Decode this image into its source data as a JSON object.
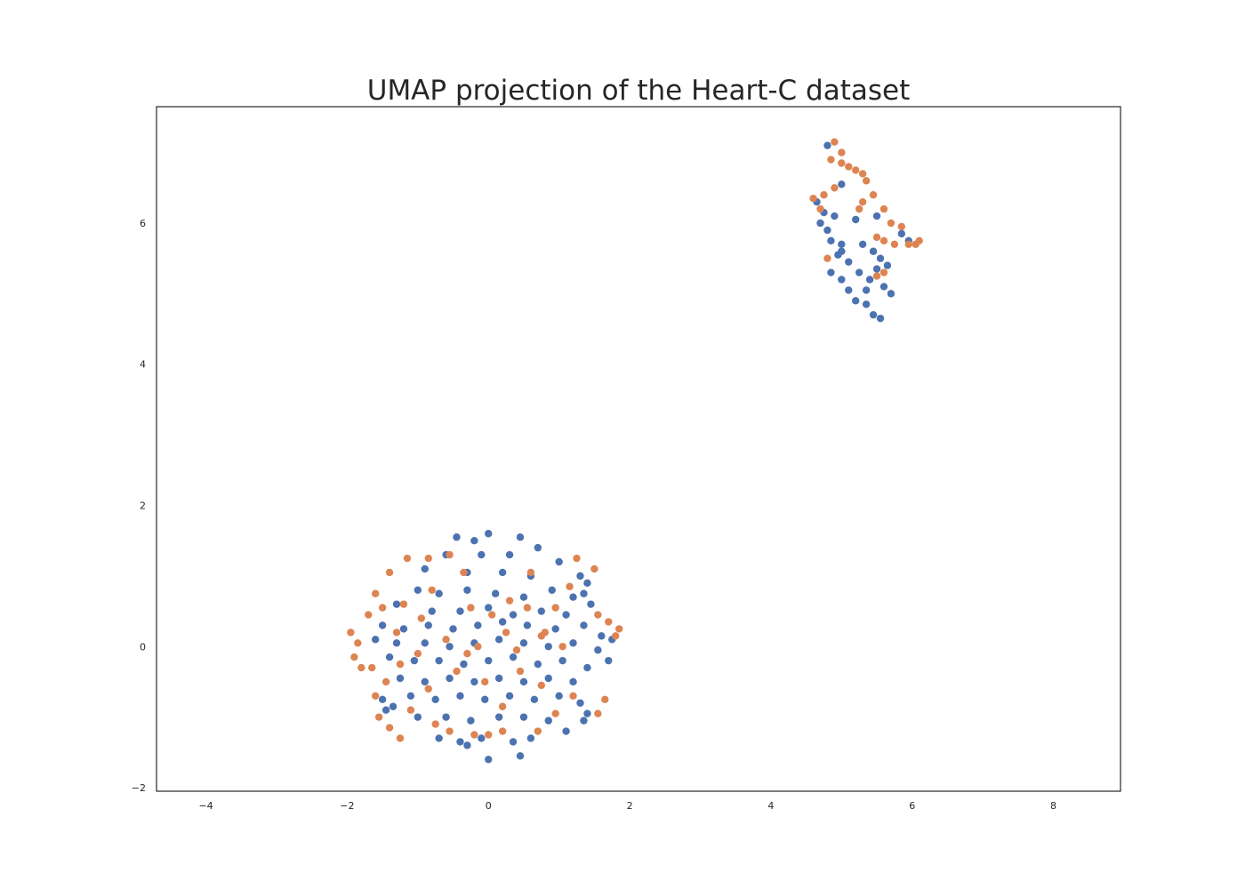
{
  "chart_data": {
    "type": "scatter",
    "title": "UMAP projection of the Heart-C dataset",
    "xlabel": "",
    "ylabel": "",
    "xlim": [
      -4.7,
      8.95
    ],
    "ylim": [
      -2.05,
      7.65
    ],
    "xticks": [
      -4,
      -2,
      0,
      2,
      4,
      6,
      8
    ],
    "yticks": [
      -2,
      0,
      2,
      4,
      6
    ],
    "grid": false,
    "legend": "none",
    "series": [
      {
        "color": "#4c72b0",
        "points": [
          [
            -0.45,
            1.55
          ],
          [
            -0.2,
            1.5
          ],
          [
            0.0,
            1.6
          ],
          [
            0.45,
            1.55
          ],
          [
            0.7,
            1.4
          ],
          [
            -0.6,
            1.3
          ],
          [
            -0.1,
            1.3
          ],
          [
            0.3,
            1.3
          ],
          [
            1.0,
            1.2
          ],
          [
            -0.9,
            1.1
          ],
          [
            -0.3,
            1.05
          ],
          [
            0.2,
            1.05
          ],
          [
            0.6,
            1.0
          ],
          [
            1.3,
            1.0
          ],
          [
            1.4,
            0.9
          ],
          [
            1.35,
            0.75
          ],
          [
            1.45,
            0.6
          ],
          [
            1.2,
            0.7
          ],
          [
            -1.0,
            0.8
          ],
          [
            -0.7,
            0.75
          ],
          [
            -0.3,
            0.8
          ],
          [
            0.1,
            0.75
          ],
          [
            0.5,
            0.7
          ],
          [
            0.9,
            0.8
          ],
          [
            -1.3,
            0.6
          ],
          [
            -0.8,
            0.5
          ],
          [
            -0.4,
            0.5
          ],
          [
            0.0,
            0.55
          ],
          [
            0.35,
            0.45
          ],
          [
            0.75,
            0.5
          ],
          [
            1.1,
            0.45
          ],
          [
            -1.5,
            0.3
          ],
          [
            -1.2,
            0.25
          ],
          [
            -0.85,
            0.3
          ],
          [
            -0.5,
            0.25
          ],
          [
            -0.15,
            0.3
          ],
          [
            0.2,
            0.35
          ],
          [
            0.55,
            0.3
          ],
          [
            0.95,
            0.25
          ],
          [
            1.35,
            0.3
          ],
          [
            1.6,
            0.15
          ],
          [
            1.75,
            0.1
          ],
          [
            -1.6,
            0.1
          ],
          [
            -1.3,
            0.05
          ],
          [
            -0.9,
            0.05
          ],
          [
            -0.55,
            0.0
          ],
          [
            -0.2,
            0.05
          ],
          [
            0.15,
            0.1
          ],
          [
            0.5,
            0.05
          ],
          [
            0.85,
            0.0
          ],
          [
            1.2,
            0.05
          ],
          [
            1.55,
            -0.05
          ],
          [
            1.7,
            -0.2
          ],
          [
            -1.4,
            -0.15
          ],
          [
            -1.05,
            -0.2
          ],
          [
            -0.7,
            -0.2
          ],
          [
            -0.35,
            -0.25
          ],
          [
            0.0,
            -0.2
          ],
          [
            0.35,
            -0.15
          ],
          [
            0.7,
            -0.25
          ],
          [
            1.05,
            -0.2
          ],
          [
            1.4,
            -0.3
          ],
          [
            -1.25,
            -0.45
          ],
          [
            -0.9,
            -0.5
          ],
          [
            -0.55,
            -0.45
          ],
          [
            -0.2,
            -0.5
          ],
          [
            0.15,
            -0.45
          ],
          [
            0.5,
            -0.5
          ],
          [
            0.85,
            -0.45
          ],
          [
            1.2,
            -0.5
          ],
          [
            -1.5,
            -0.75
          ],
          [
            -1.45,
            -0.9
          ],
          [
            -1.35,
            -0.85
          ],
          [
            -1.1,
            -0.7
          ],
          [
            -0.75,
            -0.75
          ],
          [
            -0.4,
            -0.7
          ],
          [
            -0.05,
            -0.75
          ],
          [
            0.3,
            -0.7
          ],
          [
            0.65,
            -0.75
          ],
          [
            1.0,
            -0.7
          ],
          [
            1.3,
            -0.8
          ],
          [
            1.4,
            -0.95
          ],
          [
            1.35,
            -1.05
          ],
          [
            -1.0,
            -1.0
          ],
          [
            -0.6,
            -1.0
          ],
          [
            -0.25,
            -1.05
          ],
          [
            0.15,
            -1.0
          ],
          [
            0.5,
            -1.0
          ],
          [
            0.85,
            -1.05
          ],
          [
            1.1,
            -1.2
          ],
          [
            -0.7,
            -1.3
          ],
          [
            -0.4,
            -1.35
          ],
          [
            -0.1,
            -1.3
          ],
          [
            0.35,
            -1.35
          ],
          [
            0.6,
            -1.3
          ],
          [
            0.0,
            -1.6
          ],
          [
            0.45,
            -1.55
          ],
          [
            -0.3,
            -1.4
          ],
          [
            4.8,
            7.1
          ],
          [
            5.0,
            6.55
          ],
          [
            4.65,
            6.3
          ],
          [
            4.75,
            6.15
          ],
          [
            4.9,
            6.1
          ],
          [
            4.7,
            6.0
          ],
          [
            4.8,
            5.9
          ],
          [
            5.2,
            6.05
          ],
          [
            5.5,
            6.1
          ],
          [
            4.85,
            5.75
          ],
          [
            5.0,
            5.7
          ],
          [
            5.3,
            5.7
          ],
          [
            5.45,
            5.6
          ],
          [
            5.55,
            5.5
          ],
          [
            4.95,
            5.55
          ],
          [
            5.1,
            5.45
          ],
          [
            4.85,
            5.3
          ],
          [
            5.0,
            5.2
          ],
          [
            5.25,
            5.3
          ],
          [
            5.4,
            5.2
          ],
          [
            5.6,
            5.1
          ],
          [
            5.7,
            5.0
          ],
          [
            5.35,
            5.05
          ],
          [
            5.1,
            5.05
          ],
          [
            5.2,
            4.9
          ],
          [
            5.35,
            4.85
          ],
          [
            5.45,
            4.7
          ],
          [
            5.55,
            4.65
          ],
          [
            5.5,
            5.35
          ],
          [
            5.85,
            5.85
          ],
          [
            5.95,
            5.75
          ],
          [
            5.65,
            5.4
          ],
          [
            5.0,
            5.6
          ]
        ]
      },
      {
        "color": "#dd8452",
        "points": [
          [
            -1.95,
            0.2
          ],
          [
            -1.85,
            0.05
          ],
          [
            -1.9,
            -0.15
          ],
          [
            -1.8,
            -0.3
          ],
          [
            -1.7,
            0.45
          ],
          [
            -1.6,
            0.75
          ],
          [
            -1.4,
            1.05
          ],
          [
            -1.15,
            1.25
          ],
          [
            -0.85,
            1.25
          ],
          [
            -0.55,
            1.3
          ],
          [
            -1.5,
            0.55
          ],
          [
            -1.2,
            0.6
          ],
          [
            -0.95,
            0.4
          ],
          [
            -1.65,
            -0.3
          ],
          [
            -1.45,
            -0.5
          ],
          [
            -1.6,
            -0.7
          ],
          [
            -1.55,
            -1.0
          ],
          [
            -1.4,
            -1.15
          ],
          [
            -1.25,
            -1.3
          ],
          [
            -1.1,
            -0.9
          ],
          [
            -0.85,
            -0.6
          ],
          [
            -0.75,
            -1.1
          ],
          [
            -0.55,
            -1.2
          ],
          [
            -0.45,
            -0.35
          ],
          [
            -0.3,
            -0.1
          ],
          [
            -0.6,
            0.1
          ],
          [
            -0.25,
            0.55
          ],
          [
            0.05,
            0.45
          ],
          [
            0.3,
            0.65
          ],
          [
            0.55,
            0.55
          ],
          [
            0.25,
            0.2
          ],
          [
            -0.05,
            -0.5
          ],
          [
            0.2,
            -0.85
          ],
          [
            -0.2,
            -1.25
          ],
          [
            0.0,
            -1.25
          ],
          [
            0.2,
            -1.2
          ],
          [
            0.45,
            -0.35
          ],
          [
            0.75,
            -0.55
          ],
          [
            0.8,
            0.2
          ],
          [
            0.95,
            0.55
          ],
          [
            1.15,
            0.85
          ],
          [
            1.25,
            1.25
          ],
          [
            1.5,
            1.1
          ],
          [
            1.55,
            0.45
          ],
          [
            1.7,
            0.35
          ],
          [
            1.85,
            0.25
          ],
          [
            1.8,
            0.15
          ],
          [
            1.65,
            -0.75
          ],
          [
            1.55,
            -0.95
          ],
          [
            1.2,
            -0.7
          ],
          [
            0.95,
            -0.95
          ],
          [
            0.7,
            -1.2
          ],
          [
            -1.3,
            0.2
          ],
          [
            -1.0,
            -0.1
          ],
          [
            -0.8,
            0.8
          ],
          [
            -0.35,
            1.05
          ],
          [
            0.6,
            1.05
          ],
          [
            0.75,
            0.15
          ],
          [
            -0.15,
            0.0
          ],
          [
            0.4,
            -0.05
          ],
          [
            1.05,
            0.0
          ],
          [
            -1.25,
            -0.25
          ],
          [
            4.75,
            6.4
          ],
          [
            4.6,
            6.35
          ],
          [
            4.9,
            6.5
          ],
          [
            5.0,
            6.85
          ],
          [
            5.1,
            6.8
          ],
          [
            5.2,
            6.75
          ],
          [
            5.3,
            6.7
          ],
          [
            5.35,
            6.6
          ],
          [
            4.9,
            7.15
          ],
          [
            5.0,
            7.0
          ],
          [
            4.85,
            6.9
          ],
          [
            5.45,
            6.4
          ],
          [
            5.3,
            6.3
          ],
          [
            5.6,
            6.2
          ],
          [
            5.7,
            6.0
          ],
          [
            5.85,
            5.95
          ],
          [
            5.75,
            5.7
          ],
          [
            5.6,
            5.75
          ],
          [
            5.5,
            5.8
          ],
          [
            5.95,
            5.7
          ],
          [
            6.05,
            5.7
          ],
          [
            6.1,
            5.75
          ],
          [
            4.8,
            5.5
          ],
          [
            5.5,
            5.25
          ],
          [
            5.6,
            5.3
          ],
          [
            4.7,
            6.2
          ],
          [
            5.25,
            6.2
          ]
        ]
      }
    ]
  }
}
